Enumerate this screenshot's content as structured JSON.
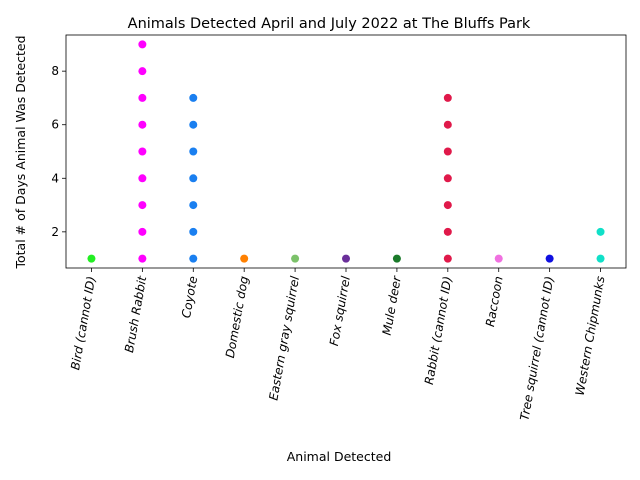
{
  "chart_data": {
    "type": "scatter",
    "title": "Animals Detected April and July 2022 at The Bluffs Park",
    "xlabel": "Animal Detected",
    "ylabel": "Total # of Days Animal Was Detected",
    "ylim": [
      0.65,
      9.35
    ],
    "yticks": [
      2,
      4,
      6,
      8
    ],
    "grid": false,
    "legend": "none",
    "categories": [
      "Bird (cannot ID)",
      "Brush Rabbit",
      "Coyote",
      "Domestic dog",
      "Eastern gray squirrel",
      "Fox squirrel",
      "Mule deer",
      "Rabbit (cannot ID)",
      "Raccoon",
      "Tree squirrel (cannot ID)",
      "Western Chipmunks"
    ],
    "series": [
      {
        "category": "Bird (cannot ID)",
        "color": "#22ee22",
        "values": [
          1
        ]
      },
      {
        "category": "Brush Rabbit",
        "color": "#ff00ff",
        "values": [
          1,
          2,
          3,
          4,
          5,
          6,
          7,
          8,
          9
        ]
      },
      {
        "category": "Coyote",
        "color": "#1a7ff0",
        "values": [
          1,
          2,
          3,
          4,
          5,
          6,
          7
        ]
      },
      {
        "category": "Domestic dog",
        "color": "#ff8000",
        "values": [
          1
        ]
      },
      {
        "category": "Eastern gray squirrel",
        "color": "#7cc26a",
        "values": [
          1
        ]
      },
      {
        "category": "Fox squirrel",
        "color": "#6a2f9a",
        "values": [
          1
        ]
      },
      {
        "category": "Mule deer",
        "color": "#1a7a2a",
        "values": [
          1
        ]
      },
      {
        "category": "Rabbit (cannot ID)",
        "color": "#e0194a",
        "values": [
          1,
          2,
          3,
          4,
          5,
          6,
          7
        ]
      },
      {
        "category": "Raccoon",
        "color": "#f070e0",
        "values": [
          1
        ]
      },
      {
        "category": "Tree squirrel (cannot ID)",
        "color": "#1010e0",
        "values": [
          1
        ]
      },
      {
        "category": "Western Chipmunks",
        "color": "#10e0c8",
        "values": [
          1,
          2
        ]
      }
    ]
  }
}
